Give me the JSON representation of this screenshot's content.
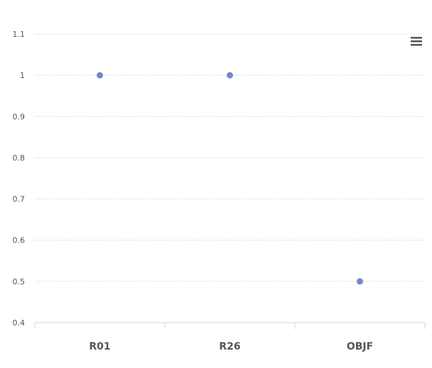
{
  "chart_data": {
    "type": "scatter",
    "title": "",
    "xlabel": "",
    "ylabel": "",
    "categories": [
      "R01",
      "R26",
      "OBJF"
    ],
    "series": [
      {
        "values": [
          1,
          1,
          0.5
        ]
      }
    ],
    "ylim": [
      0.4,
      1.1
    ],
    "y_ticks": [
      0.4,
      0.5,
      0.6,
      0.7,
      0.8,
      0.9,
      1,
      1.1
    ],
    "y_tick_labels": [
      "0.4",
      "0.5",
      "0.6",
      "0.7",
      "0.8",
      "0.9",
      "1",
      "1.1"
    ],
    "grid": true,
    "marker_color": "#7986cb",
    "legend": "none"
  },
  "toolbar": {
    "menu_icon": "hamburger-menu-icon"
  }
}
